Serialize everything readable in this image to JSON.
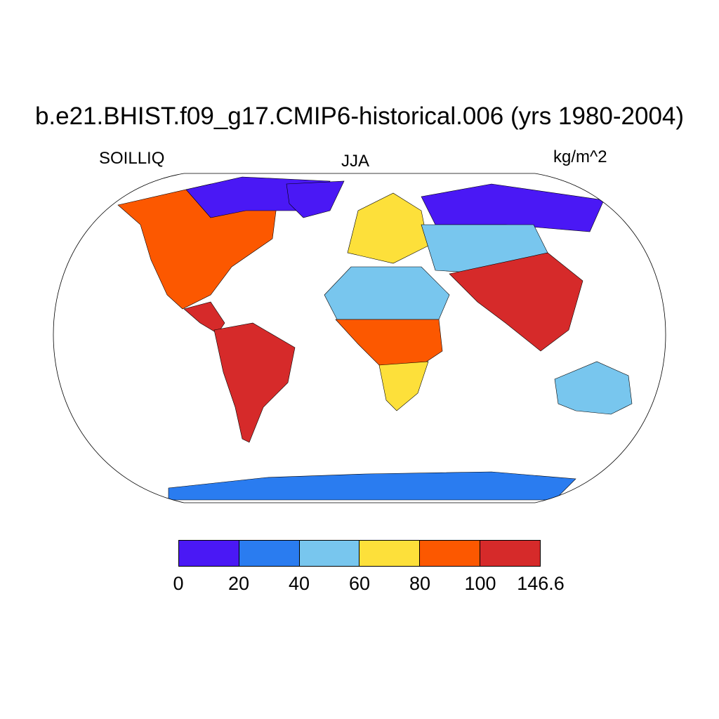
{
  "title": "b.e21.BHIST.f09_g17.CMIP6-historical.006 (yrs 1980-2004)",
  "left_label": "SOILLIQ",
  "center_label": "JJA",
  "right_label": "kg/m^2",
  "projection": "Robinson",
  "colorbar": {
    "colors": [
      "#4a18f5",
      "#2a7cf0",
      "#78c6ee",
      "#fde03a",
      "#fc5800",
      "#d62a2a"
    ],
    "ticks": [
      "0",
      "20",
      "40",
      "60",
      "80",
      "100",
      "146.6"
    ]
  },
  "regions": [
    {
      "name": "North America",
      "level": 4
    },
    {
      "name": "Northern Canada",
      "level": 0
    },
    {
      "name": "Greenland",
      "level": 0
    },
    {
      "name": "South America",
      "level": 5
    },
    {
      "name": "Sahara",
      "level": 2
    },
    {
      "name": "Central Africa",
      "level": 4
    },
    {
      "name": "Southern Africa",
      "level": 3
    },
    {
      "name": "Europe",
      "level": 3
    },
    {
      "name": "Siberia",
      "level": 0
    },
    {
      "name": "Central Asia",
      "level": 2
    },
    {
      "name": "South Asia",
      "level": 5
    },
    {
      "name": "Australia",
      "level": 2
    },
    {
      "name": "Antarctica",
      "level": 1
    }
  ]
}
